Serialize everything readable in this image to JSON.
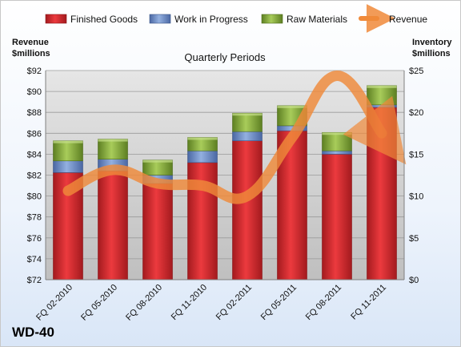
{
  "chart_data": {
    "type": "bar",
    "title": "Quarterly Periods",
    "company": "WD-40",
    "categories": [
      "FQ 02-2010",
      "FQ 05-2010",
      "FQ 08-2010",
      "FQ 11-2010",
      "FQ 02-2011",
      "FQ 05-2011",
      "FQ 08-2011",
      "FQ 11-2011"
    ],
    "left_axis": {
      "label_line1": "Revenue",
      "label_line2": "$millions",
      "min": 72,
      "max": 92,
      "step": 2,
      "ticks": [
        "$72",
        "$74",
        "$76",
        "$78",
        "$80",
        "$82",
        "$84",
        "$86",
        "$88",
        "$90",
        "$92"
      ]
    },
    "right_axis": {
      "label_line1": "Inventory",
      "label_line2": "$millions",
      "min": 0,
      "max": 25,
      "step": 5,
      "ticks": [
        "$0",
        "$5",
        "$10",
        "$15",
        "$20",
        "$25"
      ]
    },
    "series": [
      {
        "name": "Finished Goods",
        "axis": "right",
        "stack": true,
        "color": "#d9262b",
        "values": [
          12.8,
          13.0,
          11.5,
          14.0,
          16.6,
          17.8,
          15.0,
          20.6
        ]
      },
      {
        "name": "Work in Progress",
        "axis": "right",
        "stack": true,
        "color": "#6e8fc9",
        "values": [
          1.4,
          1.4,
          1.0,
          1.4,
          1.1,
          0.6,
          0.4,
          0.3
        ]
      },
      {
        "name": "Raw Materials",
        "axis": "right",
        "stack": true,
        "color": "#8db33f",
        "values": [
          2.4,
          2.4,
          1.8,
          1.6,
          2.2,
          2.4,
          2.2,
          2.3
        ]
      },
      {
        "name": "Revenue",
        "axis": "left",
        "type": "line",
        "color": "#f08a3a",
        "values": [
          80.5,
          82.5,
          81.2,
          81.0,
          80.0,
          85.6,
          91.5,
          86.0
        ]
      }
    ],
    "legend_position": "top",
    "grid": true
  }
}
